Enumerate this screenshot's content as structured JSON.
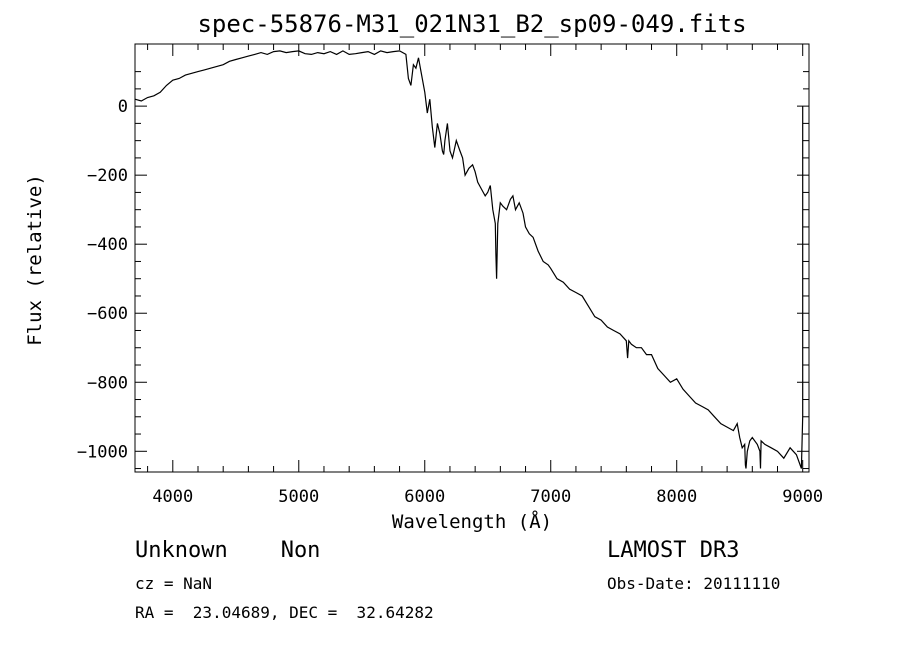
{
  "chart_data": {
    "type": "line",
    "title": "spec-55876-M31_021N31_B2_sp09-049.fits",
    "xlabel": "Wavelength (Å)",
    "ylabel": "Flux (relative)",
    "xlim": [
      3700,
      9050
    ],
    "ylim": [
      -1060,
      180
    ],
    "xticks": [
      4000,
      5000,
      6000,
      7000,
      8000,
      9000
    ],
    "yticks": [
      0,
      -200,
      -400,
      -600,
      -800,
      -1000
    ],
    "ytick_labels": [
      "0",
      "−200",
      "−400",
      "−600",
      "−800",
      "−1000"
    ],
    "grid": false,
    "series": [
      {
        "x": [
          3700,
          3750,
          3800,
          3850,
          3900,
          3950,
          4000,
          4050,
          4100,
          4150,
          4200,
          4250,
          4300,
          4350,
          4400,
          4450,
          4500,
          4550,
          4600,
          4650,
          4700,
          4750,
          4800,
          4850,
          4900,
          4950,
          5000,
          5050,
          5100,
          5150,
          5200,
          5250,
          5300,
          5350,
          5400,
          5450,
          5500,
          5550,
          5600,
          5650,
          5700,
          5750,
          5800,
          5850,
          5870,
          5890,
          5910,
          5930,
          5950,
          5970,
          6000,
          6020,
          6040,
          6060,
          6080,
          6100,
          6120,
          6140,
          6150,
          6160,
          6180,
          6200,
          6220,
          6250,
          6280,
          6300,
          6320,
          6350,
          6380,
          6400,
          6420,
          6450,
          6480,
          6500,
          6520,
          6540,
          6560,
          6565,
          6570,
          6580,
          6600,
          6620,
          6650,
          6680,
          6700,
          6720,
          6750,
          6780,
          6800,
          6830,
          6860,
          6900,
          6940,
          6980,
          7000,
          7050,
          7100,
          7150,
          7200,
          7250,
          7300,
          7350,
          7400,
          7450,
          7500,
          7550,
          7600,
          7610,
          7620,
          7640,
          7680,
          7720,
          7760,
          7800,
          7850,
          7900,
          7950,
          8000,
          8050,
          8100,
          8150,
          8200,
          8250,
          8300,
          8350,
          8400,
          8450,
          8480,
          8500,
          8520,
          8540,
          8545,
          8550,
          8560,
          8580,
          8600,
          8640,
          8660,
          8665,
          8670,
          8700,
          8750,
          8800,
          8850,
          8900,
          8950,
          8990,
          9000,
          9000,
          9000
        ],
        "y": [
          20,
          15,
          25,
          30,
          40,
          60,
          75,
          80,
          90,
          95,
          100,
          105,
          110,
          115,
          120,
          130,
          135,
          140,
          145,
          150,
          155,
          150,
          158,
          160,
          155,
          158,
          160,
          152,
          150,
          155,
          152,
          158,
          150,
          160,
          150,
          152,
          155,
          158,
          150,
          160,
          155,
          158,
          160,
          150,
          80,
          60,
          120,
          110,
          140,
          100,
          40,
          -20,
          20,
          -60,
          -120,
          -50,
          -80,
          -130,
          -140,
          -100,
          -50,
          -130,
          -150,
          -100,
          -130,
          -150,
          -200,
          -180,
          -170,
          -190,
          -220,
          -240,
          -260,
          -250,
          -230,
          -300,
          -340,
          -430,
          -500,
          -340,
          -280,
          -290,
          -300,
          -270,
          -260,
          -300,
          -280,
          -310,
          -350,
          -370,
          -380,
          -420,
          -450,
          -460,
          -470,
          -500,
          -510,
          -530,
          -540,
          -550,
          -580,
          -610,
          -620,
          -640,
          -650,
          -660,
          -680,
          -730,
          -680,
          -690,
          -700,
          -700,
          -720,
          -720,
          -760,
          -780,
          -800,
          -790,
          -820,
          -840,
          -860,
          -870,
          -880,
          -900,
          -920,
          -930,
          -940,
          -920,
          -960,
          -990,
          -980,
          -1040,
          -1050,
          -1000,
          -970,
          -960,
          -980,
          -1000,
          -1050,
          -970,
          -980,
          -990,
          -1000,
          -1020,
          -990,
          -1010,
          -1050,
          -900,
          0,
          -320
        ]
      }
    ]
  },
  "info": {
    "object": "Unknown    Non",
    "cz": "cz = NaN",
    "radec": "RA =  23.04689, DEC =  32.64282",
    "survey": "LAMOST DR3",
    "obsdate": "Obs-Date: 20111110"
  }
}
